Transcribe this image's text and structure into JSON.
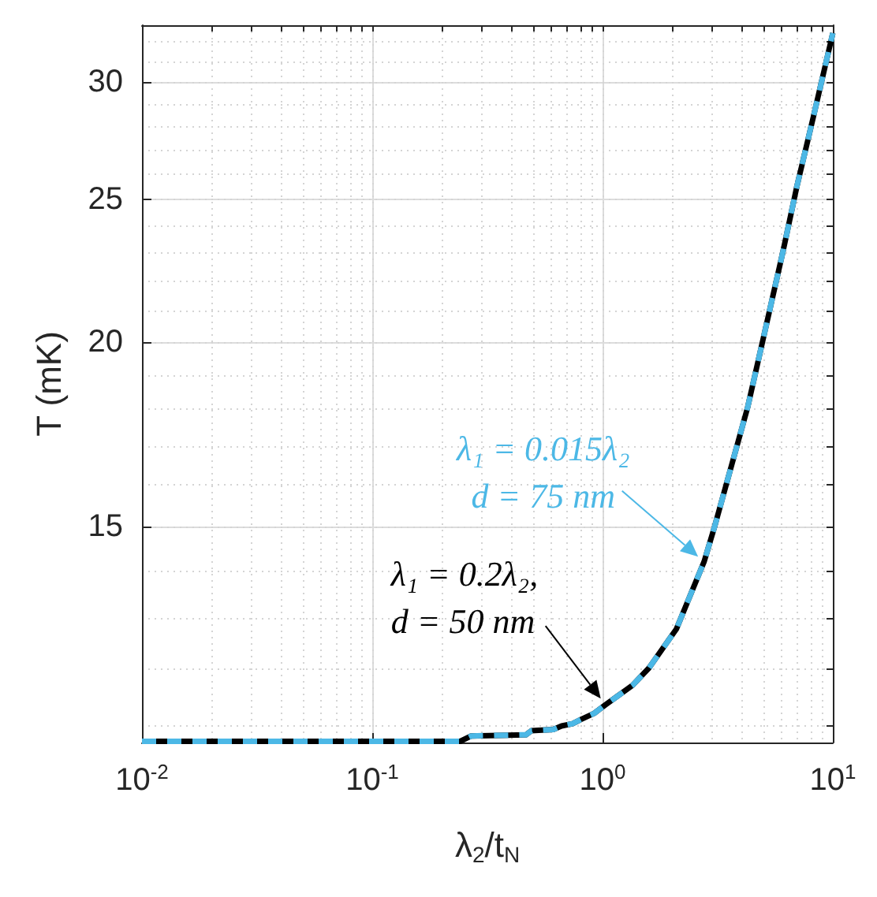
{
  "chart_data": {
    "type": "line",
    "xlabel": "λ$_{2}$/t$_{N}$",
    "ylabel": "T (mK)",
    "log": "xy",
    "grid": true,
    "legend": false,
    "marker": "none",
    "xlim": [
      0.01,
      10
    ],
    "ylim": [
      10.7,
      32.8
    ],
    "xticks": [
      {
        "value": 0.01,
        "label": "10$^{-2}$"
      },
      {
        "value": 0.02,
        "label": null
      },
      {
        "value": 0.03,
        "label": null
      },
      {
        "value": 0.04,
        "label": null
      },
      {
        "value": 0.05,
        "label": null
      },
      {
        "value": 0.06,
        "label": null
      },
      {
        "value": 0.07,
        "label": null
      },
      {
        "value": 0.08,
        "label": null
      },
      {
        "value": 0.09,
        "label": null
      },
      {
        "value": 0.1,
        "label": "10$^{-1}$"
      },
      {
        "value": 0.2,
        "label": null
      },
      {
        "value": 0.3,
        "label": null
      },
      {
        "value": 0.4,
        "label": null
      },
      {
        "value": 0.5,
        "label": null
      },
      {
        "value": 0.6,
        "label": null
      },
      {
        "value": 0.7,
        "label": null
      },
      {
        "value": 0.8,
        "label": null
      },
      {
        "value": 0.9,
        "label": null
      },
      {
        "value": 1,
        "label": "10$^{0}$"
      },
      {
        "value": 2,
        "label": null
      },
      {
        "value": 3,
        "label": null
      },
      {
        "value": 4,
        "label": null
      },
      {
        "value": 5,
        "label": null
      },
      {
        "value": 6,
        "label": null
      },
      {
        "value": 7,
        "label": null
      },
      {
        "value": 8,
        "label": null
      },
      {
        "value": 9,
        "label": null
      },
      {
        "value": 10,
        "label": "10$^{1}$"
      }
    ],
    "yticks": [
      {
        "value": 11,
        "label": null
      },
      {
        "value": 12,
        "label": null
      },
      {
        "value": 13,
        "label": null
      },
      {
        "value": 14,
        "label": null
      },
      15,
      {
        "value": 16,
        "label": null
      },
      {
        "value": 17,
        "label": null
      },
      {
        "value": 18,
        "label": null
      },
      {
        "value": 19,
        "label": null
      },
      20,
      {
        "value": 21,
        "label": null
      },
      {
        "value": 22,
        "label": null
      },
      {
        "value": 23,
        "label": null
      },
      {
        "value": 24,
        "label": null
      },
      25,
      {
        "value": 26,
        "label": null
      },
      {
        "value": 27,
        "label": null
      },
      {
        "value": 28,
        "label": null
      },
      {
        "value": 29,
        "label": null
      },
      30,
      {
        "value": 31,
        "label": null
      },
      {
        "value": 32,
        "label": null
      }
    ],
    "x": [
      0.01,
      0.241,
      0.269,
      0.465,
      0.491,
      0.611,
      0.664,
      0.741,
      0.804,
      0.921,
      1.03,
      1.35,
      1.59,
      2.09,
      2.76,
      3.07,
      4.27,
      5.02,
      6.08,
      6.98,
      8.22,
      10
    ],
    "series": [
      {
        "color": "#000000",
        "line_style": "solid",
        "values": [
          10.72,
          10.72,
          10.81,
          10.83,
          10.9,
          10.92,
          10.98,
          11.02,
          11.09,
          11.2,
          11.35,
          11.7,
          12.02,
          12.77,
          14.19,
          15,
          18.07,
          20.2,
          23.05,
          25.5,
          28.4,
          32.4
        ]
      },
      {
        "color": "#4cb8e6",
        "line_style": "dashed",
        "values": [
          10.72,
          10.72,
          10.81,
          10.83,
          10.9,
          10.92,
          10.98,
          11.02,
          11.09,
          11.2,
          11.35,
          11.7,
          12.02,
          12.77,
          14.19,
          15,
          18.07,
          20.2,
          23.05,
          25.5,
          28.4,
          32.4
        ]
      }
    ],
    "annotations": [
      {
        "text": "λ₁ = 0.2λ₂,\nd = 50 nm",
        "x": 1.03,
        "y": 11.35
      },
      {
        "text": "λ₁ = 0.015λ₂\nd = 75 nm",
        "x": 2.76,
        "y": 14.19
      }
    ]
  }
}
